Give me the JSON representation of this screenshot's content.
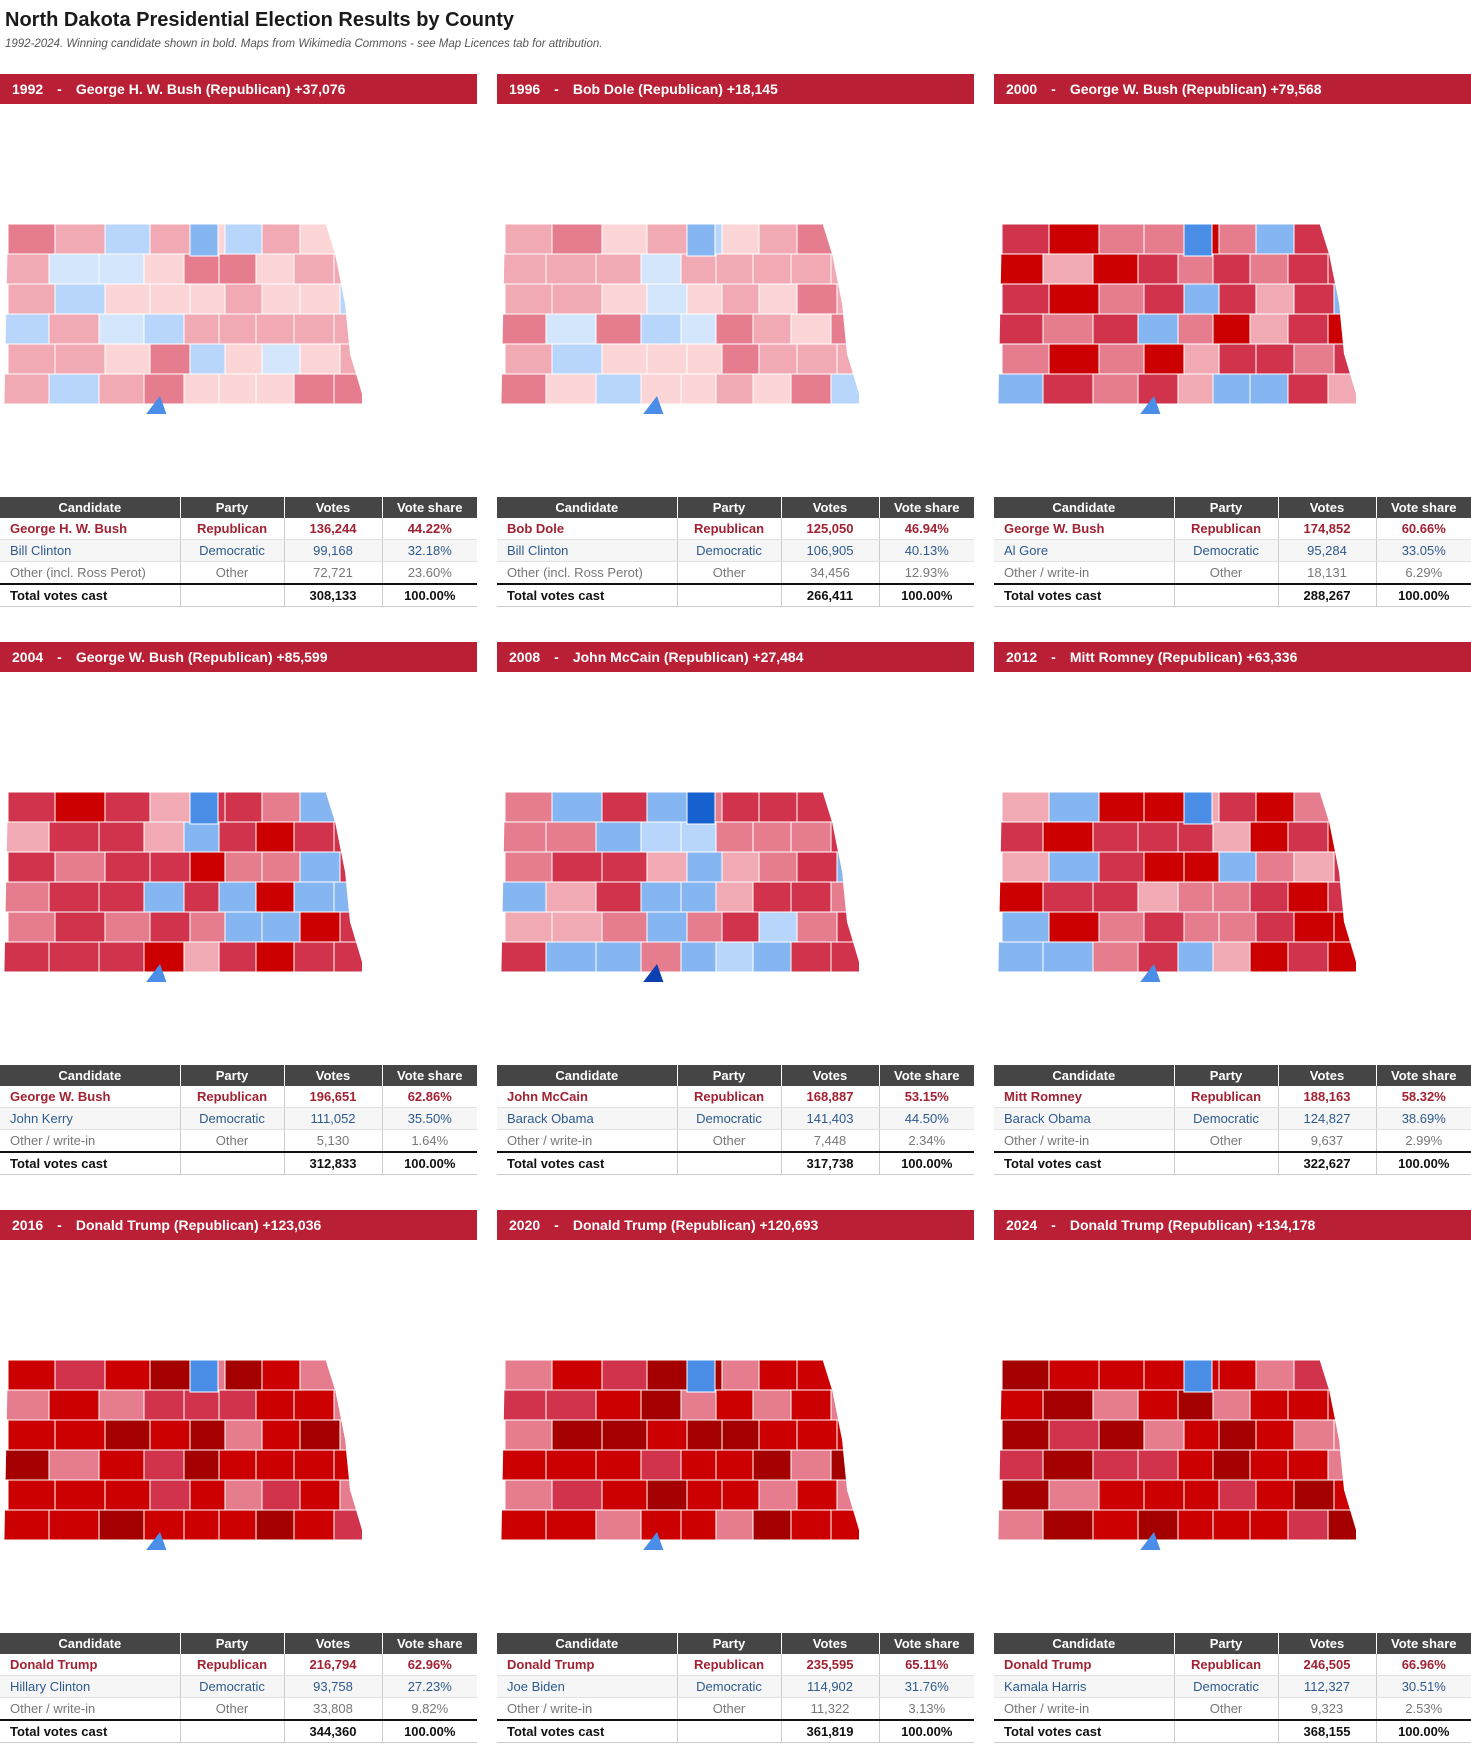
{
  "page": {
    "title": "North Dakota Presidential Election Results by County",
    "subtitle": "1992-2024. Winning candidate shown in bold. Maps from Wikimedia Commons - see Map Licences tab for attribution."
  },
  "table_headers": {
    "candidate": "Candidate",
    "party": "Party",
    "votes": "Votes",
    "share": "Vote share"
  },
  "colors": {
    "banner": "#b91f35",
    "header": "#454545",
    "rep_text": "#a02233",
    "dem_text": "#2d5a8e",
    "rep_shades": [
      "#fcd6d6",
      "#f1aab3",
      "#e57d8f",
      "#d1334c",
      "#cc0000",
      "#a50000",
      "#7a0000"
    ],
    "dem_shades": [
      "#d4e6fb",
      "#b8d6fb",
      "#86b6f2",
      "#4a8ee8",
      "#1660d0",
      "#0b40b0"
    ]
  },
  "elections": [
    {
      "year": "1992",
      "headline": "George H. W. Bush (Republican) +37,076",
      "map_tone": "light",
      "map_icon": "north-dakota-county-map",
      "rows": [
        {
          "candidate": "George H. W. Bush",
          "party": "Republican",
          "votes": "136,244",
          "share": "44.22%"
        },
        {
          "candidate": "Bill Clinton",
          "party": "Democratic",
          "votes": "99,168",
          "share": "32.18%"
        },
        {
          "candidate": "Other (incl. Ross Perot)",
          "party": "Other",
          "votes": "72,721",
          "share": "23.60%"
        },
        {
          "candidate": "Total votes cast",
          "party": "",
          "votes": "308,133",
          "share": "100.00%"
        }
      ]
    },
    {
      "year": "1996",
      "headline": "Bob Dole (Republican) +18,145",
      "map_tone": "light",
      "map_icon": "north-dakota-county-map",
      "rows": [
        {
          "candidate": "Bob Dole",
          "party": "Republican",
          "votes": "125,050",
          "share": "46.94%"
        },
        {
          "candidate": "Bill Clinton",
          "party": "Democratic",
          "votes": "106,905",
          "share": "40.13%"
        },
        {
          "candidate": "Other (incl. Ross Perot)",
          "party": "Other",
          "votes": "34,456",
          "share": "12.93%"
        },
        {
          "candidate": "Total votes cast",
          "party": "",
          "votes": "266,411",
          "share": "100.00%"
        }
      ]
    },
    {
      "year": "2000",
      "headline": "George W. Bush (Republican) +79,568",
      "map_tone": "medium",
      "map_icon": "north-dakota-county-map",
      "rows": [
        {
          "candidate": "George W. Bush",
          "party": "Republican",
          "votes": "174,852",
          "share": "60.66%"
        },
        {
          "candidate": "Al Gore",
          "party": "Democratic",
          "votes": "95,284",
          "share": "33.05%"
        },
        {
          "candidate": "Other / write-in",
          "party": "Other",
          "votes": "18,131",
          "share": "6.29%"
        },
        {
          "candidate": "Total votes cast",
          "party": "",
          "votes": "288,267",
          "share": "100.00%"
        }
      ]
    },
    {
      "year": "2004",
      "headline": "George W. Bush (Republican) +85,599",
      "map_tone": "medium",
      "map_icon": "north-dakota-county-map",
      "rows": [
        {
          "candidate": "George W. Bush",
          "party": "Republican",
          "votes": "196,651",
          "share": "62.86%"
        },
        {
          "candidate": "John Kerry",
          "party": "Democratic",
          "votes": "111,052",
          "share": "35.50%"
        },
        {
          "candidate": "Other / write-in",
          "party": "Other",
          "votes": "5,130",
          "share": "1.64%"
        },
        {
          "candidate": "Total votes cast",
          "party": "",
          "votes": "312,833",
          "share": "100.00%"
        }
      ]
    },
    {
      "year": "2008",
      "headline": "John McCain (Republican) +27,484",
      "map_tone": "mixed",
      "map_icon": "north-dakota-county-map",
      "rows": [
        {
          "candidate": "John McCain",
          "party": "Republican",
          "votes": "168,887",
          "share": "53.15%"
        },
        {
          "candidate": "Barack Obama",
          "party": "Democratic",
          "votes": "141,403",
          "share": "44.50%"
        },
        {
          "candidate": "Other / write-in",
          "party": "Other",
          "votes": "7,448",
          "share": "2.34%"
        },
        {
          "candidate": "Total votes cast",
          "party": "",
          "votes": "317,738",
          "share": "100.00%"
        }
      ]
    },
    {
      "year": "2012",
      "headline": "Mitt Romney (Republican) +63,336",
      "map_tone": "medium",
      "map_icon": "north-dakota-county-map",
      "rows": [
        {
          "candidate": "Mitt Romney",
          "party": "Republican",
          "votes": "188,163",
          "share": "58.32%"
        },
        {
          "candidate": "Barack Obama",
          "party": "Democratic",
          "votes": "124,827",
          "share": "38.69%"
        },
        {
          "candidate": "Other / write-in",
          "party": "Other",
          "votes": "9,637",
          "share": "2.99%"
        },
        {
          "candidate": "Total votes cast",
          "party": "",
          "votes": "322,627",
          "share": "100.00%"
        }
      ]
    },
    {
      "year": "2016",
      "headline": "Donald Trump (Republican) +123,036",
      "map_tone": "dark",
      "map_icon": "north-dakota-county-map",
      "rows": [
        {
          "candidate": "Donald Trump",
          "party": "Republican",
          "votes": "216,794",
          "share": "62.96%"
        },
        {
          "candidate": "Hillary Clinton",
          "party": "Democratic",
          "votes": "93,758",
          "share": "27.23%"
        },
        {
          "candidate": "Other / write-in",
          "party": "Other",
          "votes": "33,808",
          "share": "9.82%"
        },
        {
          "candidate": "Total votes cast",
          "party": "",
          "votes": "344,360",
          "share": "100.00%"
        }
      ]
    },
    {
      "year": "2020",
      "headline": "Donald Trump (Republican) +120,693",
      "map_tone": "dark",
      "map_icon": "north-dakota-county-map",
      "rows": [
        {
          "candidate": "Donald Trump",
          "party": "Republican",
          "votes": "235,595",
          "share": "65.11%"
        },
        {
          "candidate": "Joe Biden",
          "party": "Democratic",
          "votes": "114,902",
          "share": "31.76%"
        },
        {
          "candidate": "Other / write-in",
          "party": "Other",
          "votes": "11,322",
          "share": "3.13%"
        },
        {
          "candidate": "Total votes cast",
          "party": "",
          "votes": "361,819",
          "share": "100.00%"
        }
      ]
    },
    {
      "year": "2024",
      "headline": "Donald Trump (Republican) +134,178",
      "map_tone": "dark",
      "map_icon": "north-dakota-county-map",
      "rows": [
        {
          "candidate": "Donald Trump",
          "party": "Republican",
          "votes": "246,505",
          "share": "66.96%"
        },
        {
          "candidate": "Kamala Harris",
          "party": "Democratic",
          "votes": "112,327",
          "share": "30.51%"
        },
        {
          "candidate": "Other / write-in",
          "party": "Other",
          "votes": "9,323",
          "share": "2.53%"
        },
        {
          "candidate": "Total votes cast",
          "party": "",
          "votes": "368,155",
          "share": "100.00%"
        }
      ]
    }
  ]
}
